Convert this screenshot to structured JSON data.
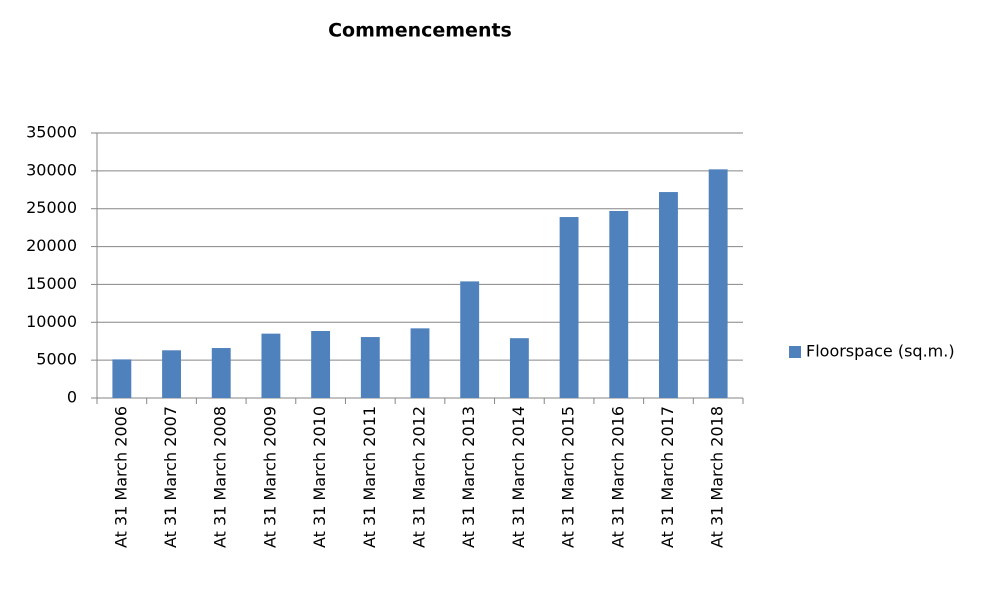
{
  "chart_data": {
    "type": "bar",
    "title": "Commencements",
    "categories": [
      "At 31 March 2006",
      "At 31 March 2007",
      "At 31 March 2008",
      "At 31 March 2009",
      "At 31 March 2010",
      "At 31 March 2011",
      "At 31 March 2012",
      "At 31 March 2013",
      "At 31 March 2014",
      "At 31 March 2015",
      "At 31 March 2016",
      "At 31 March 2017",
      "At 31 March 2018"
    ],
    "series": [
      {
        "name": "Floorspace (sq.m.)",
        "color": "#4f81bd",
        "values": [
          5100,
          6300,
          6600,
          8500,
          8850,
          8050,
          9200,
          15400,
          7900,
          23900,
          24700,
          27200,
          30200
        ]
      }
    ],
    "ylim": [
      0,
      35000
    ],
    "yticks": [
      0,
      5000,
      10000,
      15000,
      20000,
      25000,
      30000,
      35000
    ],
    "grid": true,
    "legend": "right"
  }
}
